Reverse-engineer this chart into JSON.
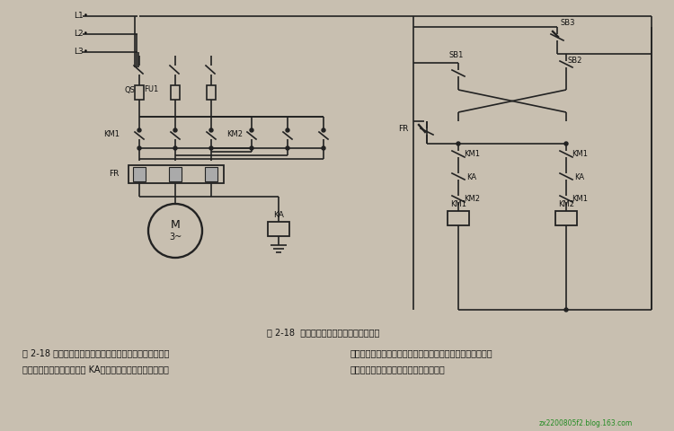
{
  "title": "图 2-18  带中间继电器的可逆运行控制线路",
  "bg_color": "#c8bfb0",
  "circuit_bg": "#e8e0d0",
  "text_color": "#111111",
  "body_text_left": "图 2-18 所示为带中间继电器的可逆运行控制线路。该线路\n由于加装了一只中间继电器 KA，就可防止电动机可逆运行时",
  "body_text_right": "因容量较大或操作不当等原因，在触点尚未完全灭弧时而反转\n的接触器闭合，所产生的相间短路现象。",
  "watermark": "zx2200805f2.blog.163.com",
  "line_color": "#222222",
  "line_width": 1.2
}
